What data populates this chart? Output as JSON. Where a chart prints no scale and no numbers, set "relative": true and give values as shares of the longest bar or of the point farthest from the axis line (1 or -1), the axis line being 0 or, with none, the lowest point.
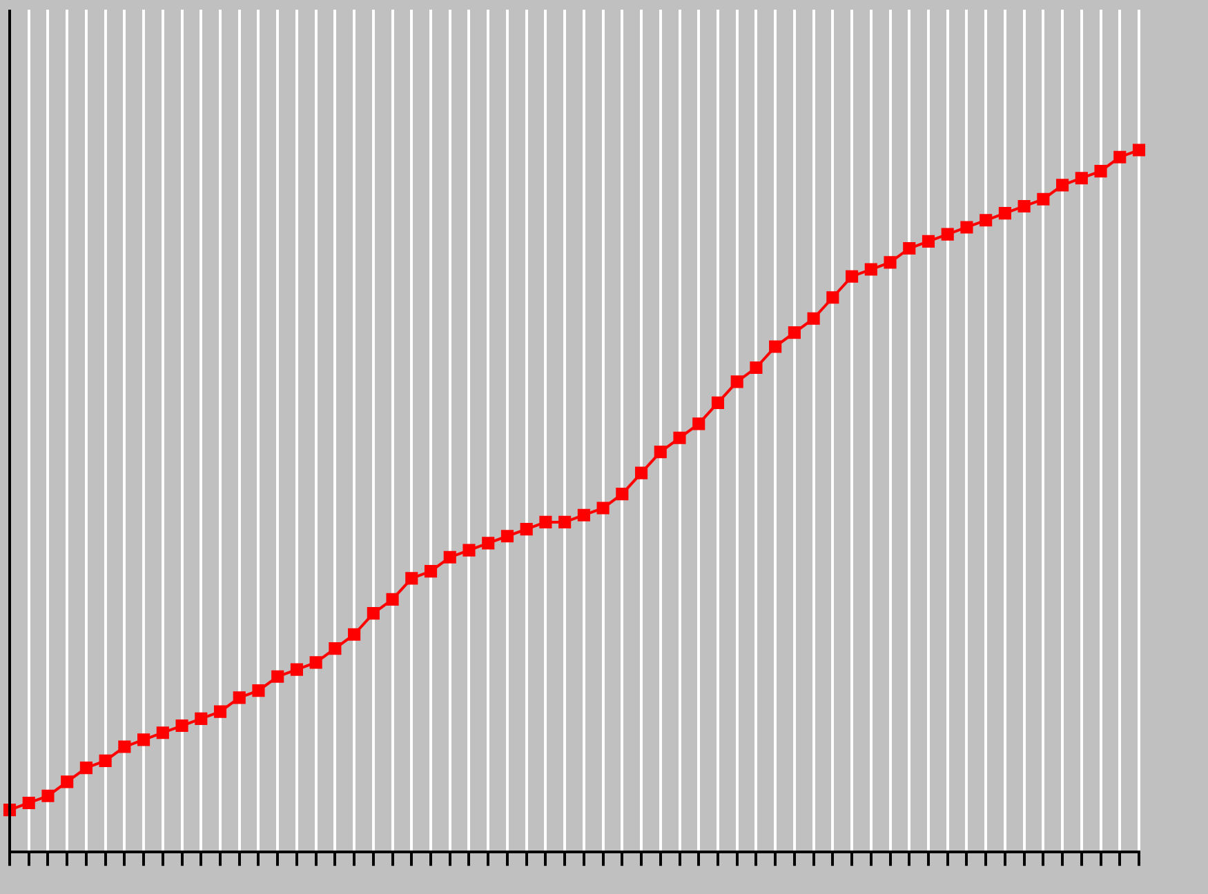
{
  "chart_data": {
    "type": "line",
    "relative": true,
    "grid": "x",
    "marker": "square",
    "line_style": "solid",
    "categories": [
      null,
      null,
      null,
      null,
      null,
      null,
      null,
      null,
      null,
      null,
      null,
      null,
      null,
      null,
      null,
      null,
      null,
      null,
      null,
      null,
      null,
      null,
      null,
      null,
      null,
      null,
      null,
      null,
      null,
      null,
      null,
      null,
      null,
      null,
      null,
      null,
      null,
      null,
      null,
      null,
      null,
      null,
      null,
      null,
      null,
      null,
      null,
      null,
      null,
      null,
      null,
      null,
      null,
      null,
      null,
      null,
      null,
      null,
      null,
      null
    ],
    "series": [
      {
        "color": "#ff0000",
        "values": [
          0.06,
          0.07,
          0.08,
          0.1,
          0.12,
          0.13,
          0.15,
          0.16,
          0.17,
          0.18,
          0.19,
          0.2,
          0.22,
          0.23,
          0.25,
          0.26,
          0.27,
          0.29,
          0.31,
          0.34,
          0.36,
          0.39,
          0.4,
          0.42,
          0.43,
          0.44,
          0.45,
          0.46,
          0.47,
          0.47,
          0.48,
          0.49,
          0.51,
          0.54,
          0.57,
          0.59,
          0.61,
          0.64,
          0.67,
          0.69,
          0.72,
          0.74,
          0.76,
          0.79,
          0.82,
          0.83,
          0.84,
          0.86,
          0.87,
          0.88,
          0.89,
          0.9,
          0.91,
          0.92,
          0.93,
          0.95,
          0.96,
          0.97,
          0.99,
          1
        ]
      }
    ]
  }
}
